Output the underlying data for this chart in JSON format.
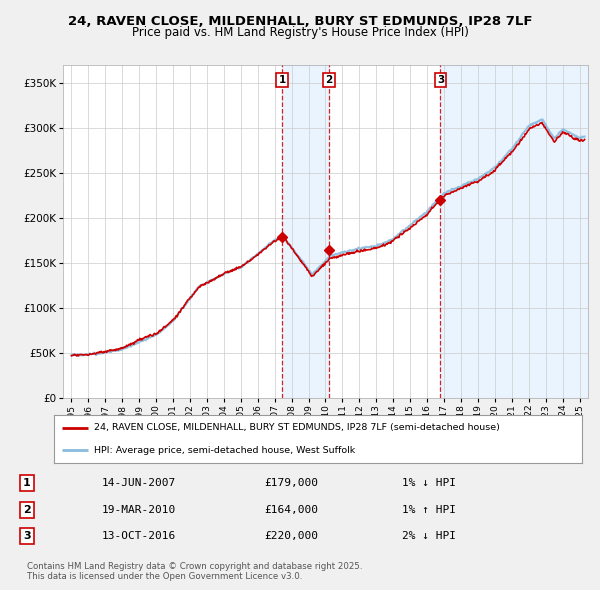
{
  "title_line1": "24, RAVEN CLOSE, MILDENHALL, BURY ST EDMUNDS, IP28 7LF",
  "title_line2": "Price paid vs. HM Land Registry's House Price Index (HPI)",
  "background_color": "#f0f0f0",
  "plot_bg_color": "#ffffff",
  "shade_color": "#ddeeff",
  "sale_color": "#cc0000",
  "hpi_color": "#88bbdd",
  "grid_color": "#cccccc",
  "vline_color": "#cc0000",
  "sales": [
    {
      "date_num": 2007.45,
      "price": 179000,
      "label": "1"
    },
    {
      "date_num": 2010.22,
      "price": 164000,
      "label": "2"
    },
    {
      "date_num": 2016.79,
      "price": 220000,
      "label": "3"
    }
  ],
  "annotations": [
    {
      "num": "1",
      "date": "14-JUN-2007",
      "price": "£179,000",
      "hpi_rel": "1% ↓ HPI"
    },
    {
      "num": "2",
      "date": "19-MAR-2010",
      "price": "£164,000",
      "hpi_rel": "1% ↑ HPI"
    },
    {
      "num": "3",
      "date": "13-OCT-2016",
      "price": "£220,000",
      "hpi_rel": "2% ↓ HPI"
    }
  ],
  "legend_line1": "24, RAVEN CLOSE, MILDENHALL, BURY ST EDMUNDS, IP28 7LF (semi-detached house)",
  "legend_line2": "HPI: Average price, semi-detached house, West Suffolk",
  "footer": "Contains HM Land Registry data © Crown copyright and database right 2025.\nThis data is licensed under the Open Government Licence v3.0.",
  "ylim": [
    0,
    370000
  ],
  "yticks": [
    0,
    50000,
    100000,
    150000,
    200000,
    250000,
    300000,
    350000
  ],
  "xmin": 1994.5,
  "xmax": 2025.5
}
